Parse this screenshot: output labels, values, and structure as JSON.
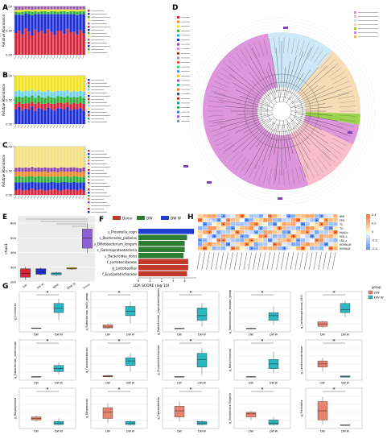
{
  "panels": {
    "A": {
      "letter": "A"
    },
    "B": {
      "letter": "B"
    },
    "C": {
      "letter": "C"
    },
    "D": {
      "letter": "D"
    },
    "E": {
      "letter": "E"
    },
    "F": {
      "letter": "F"
    },
    "G": {
      "letter": "G"
    },
    "H": {
      "letter": "H"
    }
  },
  "colors": {
    "donor": "#c0392b",
    "dw": "#2e7d32",
    "dww": "#1f3fd1",
    "phylum_bacteroidetes": "#d98ad8",
    "phylum_proteobacteria": "#f7b7c6",
    "phylum_actinobacteria": "#c8e6f5",
    "phylum_firmicutes": "#f6d8b0",
    "g_dw": "#e8836f",
    "g_dww": "#2bb6c2"
  },
  "chart_data": [
    {
      "panel": "A",
      "type": "bar",
      "stacked": true,
      "ylabel": "Relative Abundance",
      "n_samples": 22,
      "series": [
        {
          "color": "#d6243a",
          "values": [
            0.45,
            0.5,
            0.42,
            0.55,
            0.48,
            0.4,
            0.52,
            0.46,
            0.5,
            0.44,
            0.53,
            0.47,
            0.41,
            0.5,
            0.49,
            0.43,
            0.54,
            0.46,
            0.48,
            0.42,
            0.51,
            0.45
          ]
        },
        {
          "color": "#1c2fd6",
          "values": [
            0.38,
            0.33,
            0.4,
            0.3,
            0.36,
            0.42,
            0.32,
            0.38,
            0.34,
            0.4,
            0.31,
            0.37,
            0.43,
            0.34,
            0.35,
            0.41,
            0.3,
            0.38,
            0.36,
            0.4,
            0.33,
            0.39
          ]
        },
        {
          "color": "#30b03a",
          "values": [
            0.06,
            0.05,
            0.07,
            0.05,
            0.06,
            0.07,
            0.06,
            0.05,
            0.06,
            0.06,
            0.05,
            0.06,
            0.06,
            0.05,
            0.06,
            0.06,
            0.05,
            0.06,
            0.06,
            0.07,
            0.06,
            0.06
          ]
        },
        {
          "color": "#f2e21c",
          "values": [
            0.04,
            0.05,
            0.04,
            0.04,
            0.04,
            0.04,
            0.04,
            0.05,
            0.04,
            0.04,
            0.05,
            0.04,
            0.04,
            0.05,
            0.04,
            0.04,
            0.05,
            0.04,
            0.04,
            0.04,
            0.04,
            0.04
          ]
        },
        {
          "color": "#9b59b6",
          "values": [
            0.07,
            0.07,
            0.07,
            0.06,
            0.06,
            0.07,
            0.06,
            0.06,
            0.06,
            0.06,
            0.06,
            0.06,
            0.06,
            0.06,
            0.06,
            0.06,
            0.06,
            0.06,
            0.06,
            0.07,
            0.06,
            0.06
          ]
        }
      ]
    },
    {
      "panel": "B",
      "type": "bar",
      "stacked": true,
      "ylabel": "Relative Abundance",
      "n_samples": 22,
      "series": [
        {
          "color": "#1c2fd6",
          "values": [
            0.3,
            0.35,
            0.28,
            0.32,
            0.3,
            0.36,
            0.27,
            0.33,
            0.31,
            0.29,
            0.34,
            0.3,
            0.28,
            0.33,
            0.32,
            0.3,
            0.35,
            0.29,
            0.31,
            0.3,
            0.33,
            0.28
          ]
        },
        {
          "color": "#d6243a",
          "values": [
            0.12,
            0.1,
            0.14,
            0.11,
            0.13,
            0.1,
            0.15,
            0.12,
            0.11,
            0.13,
            0.1,
            0.12,
            0.14,
            0.11,
            0.12,
            0.13,
            0.1,
            0.12,
            0.13,
            0.12,
            0.11,
            0.14
          ]
        },
        {
          "color": "#30b03a",
          "values": [
            0.14,
            0.12,
            0.13,
            0.15,
            0.12,
            0.13,
            0.12,
            0.14,
            0.13,
            0.12,
            0.14,
            0.13,
            0.12,
            0.14,
            0.13,
            0.12,
            0.13,
            0.14,
            0.12,
            0.13,
            0.14,
            0.12
          ]
        },
        {
          "color": "#6fd2f0",
          "values": [
            0.12,
            0.13,
            0.12,
            0.11,
            0.13,
            0.12,
            0.13,
            0.11,
            0.12,
            0.13,
            0.12,
            0.12,
            0.13,
            0.11,
            0.12,
            0.13,
            0.12,
            0.11,
            0.13,
            0.12,
            0.11,
            0.13
          ]
        },
        {
          "color": "#f2e21c",
          "values": [
            0.32,
            0.3,
            0.33,
            0.31,
            0.32,
            0.29,
            0.33,
            0.3,
            0.33,
            0.33,
            0.3,
            0.33,
            0.33,
            0.31,
            0.31,
            0.32,
            0.3,
            0.34,
            0.31,
            0.33,
            0.31,
            0.33
          ]
        }
      ]
    },
    {
      "panel": "C",
      "type": "bar",
      "stacked": true,
      "ylabel": "Relative Abundance",
      "n_samples": 22,
      "series": [
        {
          "color": "#d6243a",
          "values": [
            0.1,
            0.12,
            0.09,
            0.11,
            0.1,
            0.13,
            0.1,
            0.11,
            0.12,
            0.09,
            0.1,
            0.11,
            0.12,
            0.1,
            0.09,
            0.11,
            0.12,
            0.1,
            0.11,
            0.1,
            0.12,
            0.09
          ]
        },
        {
          "color": "#1c2fd6",
          "values": [
            0.16,
            0.14,
            0.17,
            0.15,
            0.16,
            0.14,
            0.16,
            0.15,
            0.14,
            0.17,
            0.15,
            0.16,
            0.14,
            0.15,
            0.17,
            0.16,
            0.14,
            0.15,
            0.16,
            0.15,
            0.14,
            0.17
          ]
        },
        {
          "color": "#30b03a",
          "values": [
            0.12,
            0.13,
            0.11,
            0.12,
            0.13,
            0.12,
            0.11,
            0.13,
            0.12,
            0.12,
            0.13,
            0.11,
            0.12,
            0.13,
            0.12,
            0.11,
            0.13,
            0.12,
            0.12,
            0.13,
            0.11,
            0.12
          ]
        },
        {
          "color": "#f08a24",
          "values": [
            0.1,
            0.09,
            0.11,
            0.1,
            0.09,
            0.1,
            0.11,
            0.09,
            0.1,
            0.11,
            0.09,
            0.1,
            0.1,
            0.09,
            0.11,
            0.1,
            0.09,
            0.11,
            0.1,
            0.09,
            0.1,
            0.11
          ]
        },
        {
          "color": "#8e44ad",
          "values": [
            0.08,
            0.09,
            0.08,
            0.09,
            0.08,
            0.09,
            0.08,
            0.09,
            0.08,
            0.08,
            0.09,
            0.08,
            0.09,
            0.08,
            0.08,
            0.09,
            0.08,
            0.09,
            0.08,
            0.09,
            0.08,
            0.08
          ]
        },
        {
          "color": "#f4e07a",
          "values": [
            0.44,
            0.43,
            0.44,
            0.43,
            0.44,
            0.42,
            0.44,
            0.43,
            0.44,
            0.43,
            0.44,
            0.44,
            0.43,
            0.45,
            0.43,
            0.43,
            0.44,
            0.43,
            0.43,
            0.44,
            0.45,
            0.43
          ]
        }
      ]
    },
    {
      "panel": "E",
      "type": "box",
      "ylabel": "chao1",
      "categories": [
        "DW",
        "DW W",
        "NDW",
        "NDW W",
        "Donor"
      ],
      "colors": [
        "#d6243a",
        "#1c2fd6",
        "#1fb6c9",
        "#e8c21a",
        "#8e5fd6"
      ],
      "ylim": [
        200,
        650
      ],
      "yticks": [
        200,
        300,
        400,
        500,
        600
      ],
      "boxes": [
        {
          "min": 215,
          "q1": 232,
          "median": 258,
          "q3": 290,
          "max": 305
        },
        {
          "min": 245,
          "q1": 252,
          "median": 268,
          "q3": 290,
          "max": 300
        },
        {
          "min": 240,
          "q1": 248,
          "median": 256,
          "q3": 262,
          "max": 270
        },
        {
          "min": 282,
          "q1": 288,
          "median": 292,
          "q3": 298,
          "max": 302
        },
        {
          "min": 395,
          "q1": 430,
          "median": 500,
          "q3": 560,
          "max": 600
        }
      ]
    },
    {
      "panel": "F",
      "type": "bar",
      "orientation": "horizontal",
      "xlabel": "LDA SCORE (log 10)",
      "xlim": [
        0,
        5
      ],
      "xticks": [
        0,
        1,
        2,
        3,
        4
      ],
      "legend": [
        "Donor",
        "DW",
        "DW W"
      ],
      "categories": [
        "s_Prevotella_copri",
        "s_Bacteroides_plebeius",
        "s_Bifidobacterium_longum",
        "c_Gammaproteobacteria",
        "s_Bacteroides_dorei",
        "f_Lactobacillaceae",
        "g_Lactobacillus",
        "f_Erysipelotrichaceae"
      ],
      "values": [
        4.8,
        4.2,
        4.0,
        4.0,
        3.9,
        4.3,
        4.3,
        4.2
      ],
      "groups": [
        "DW W",
        "DW",
        "DW",
        "DW",
        "DW",
        "Donor",
        "Donor",
        "Donor"
      ]
    },
    {
      "panel": "H",
      "type": "heatmap",
      "rows": [
        "BMI",
        "FPG",
        "TC",
        "TG",
        "HbA1c",
        "HDL-c",
        "LDL-c",
        "HOMA-IR",
        "HOMA-β"
      ],
      "n_cols": 30,
      "scale": [
        -0.4,
        0.4
      ],
      "scale_ticks": [
        "0.4",
        "0.2",
        "0",
        "-0.2",
        "-0.4"
      ]
    },
    {
      "panel": "G",
      "type": "box",
      "legend_title": "group",
      "legend": [
        "DW",
        "DW W"
      ],
      "categories": [
        "DW",
        "DW W"
      ],
      "significance": "*",
      "subplots": [
        {
          "ylabel": "g_Collinsella",
          "boxes": [
            {
              "min": 0.02,
              "q1": 0.03,
              "median": 0.04,
              "q3": 0.05,
              "max": 0.06
            },
            {
              "min": 0.3,
              "q1": 0.55,
              "median": 0.7,
              "q3": 0.85,
              "max": 1.0
            }
          ]
        },
        {
          "ylabel": "g_Eubacterium_hallii_group",
          "boxes": [
            {
              "min": 0.02,
              "q1": 0.05,
              "median": 0.08,
              "q3": 0.15,
              "max": 0.2
            },
            {
              "min": 0.2,
              "q1": 0.45,
              "median": 0.6,
              "q3": 0.75,
              "max": 0.9
            }
          ]
        },
        {
          "ylabel": "g_Eubacterium_coprostanoligenes",
          "boxes": [
            {
              "min": 0.01,
              "q1": 0.02,
              "median": 0.03,
              "q3": 0.04,
              "max": 0.05
            },
            {
              "min": 0.1,
              "q1": 0.3,
              "median": 0.45,
              "q3": 0.7,
              "max": 0.85
            }
          ]
        },
        {
          "ylabel": "g_Ruminococcus_torques_group",
          "boxes": [
            {
              "min": 0.01,
              "q1": 0.02,
              "median": 0.03,
              "q3": 0.04,
              "max": 0.05
            },
            {
              "min": 0.15,
              "q1": 0.3,
              "median": 0.45,
              "q3": 0.55,
              "max": 0.75
            }
          ]
        },
        {
          "ylabel": "g_Lachnospiraceae_UCG",
          "boxes": [
            {
              "min": 0.05,
              "q1": 0.1,
              "median": 0.18,
              "q3": 0.25,
              "max": 0.3
            },
            {
              "min": 0.4,
              "q1": 0.55,
              "median": 0.65,
              "q3": 0.85,
              "max": 0.95
            }
          ]
        },
        {
          "ylabel": "g_Eubacterium_ventriosum",
          "boxes": [
            {
              "min": 0.01,
              "q1": 0.02,
              "median": 0.03,
              "q3": 0.04,
              "max": 0.05
            },
            {
              "min": 0.1,
              "q1": 0.2,
              "median": 0.3,
              "q3": 0.4,
              "max": 0.5
            }
          ]
        },
        {
          "ylabel": "g_Fusicatenibacter",
          "boxes": [
            {
              "min": 0.02,
              "q1": 0.03,
              "median": 0.05,
              "q3": 0.07,
              "max": 0.1
            },
            {
              "min": 0.2,
              "q1": 0.4,
              "median": 0.55,
              "q3": 0.65,
              "max": 0.8
            }
          ]
        },
        {
          "ylabel": "g_Erysipelotrichaceae",
          "boxes": [
            {
              "min": 0.01,
              "q1": 0.02,
              "median": 0.03,
              "q3": 0.04,
              "max": 0.05
            },
            {
              "min": 0.1,
              "q1": 0.35,
              "median": 0.6,
              "q3": 0.8,
              "max": 0.95
            }
          ]
        },
        {
          "ylabel": "g_Butyricicoccus",
          "boxes": [
            {
              "min": 0.01,
              "q1": 0.02,
              "median": 0.03,
              "q3": 0.04,
              "max": 0.05
            },
            {
              "min": 0.15,
              "q1": 0.3,
              "median": 0.45,
              "q3": 0.6,
              "max": 0.85
            }
          ]
        },
        {
          "ylabel": "g_Lachnoclostridium",
          "boxes": [
            {
              "min": 0.2,
              "q1": 0.35,
              "median": 0.45,
              "q3": 0.55,
              "max": 0.65
            },
            {
              "min": 0.01,
              "q1": 0.02,
              "median": 0.04,
              "q3": 0.06,
              "max": 0.08
            }
          ]
        },
        {
          "ylabel": "g_Megasphaera",
          "boxes": [
            {
              "min": 0.15,
              "q1": 0.2,
              "median": 0.25,
              "q3": 0.3,
              "max": 0.35
            },
            {
              "min": 0.02,
              "q1": 0.05,
              "median": 0.1,
              "q3": 0.15,
              "max": 0.25
            }
          ]
        },
        {
          "ylabel": "g_Megamonas",
          "boxes": [
            {
              "min": 0.1,
              "q1": 0.25,
              "median": 0.45,
              "q3": 0.6,
              "max": 0.75
            },
            {
              "min": 0.02,
              "q1": 0.05,
              "median": 0.1,
              "q3": 0.15,
              "max": 0.2
            }
          ]
        },
        {
          "ylabel": "g_Parasutterella",
          "boxes": [
            {
              "min": 0.15,
              "q1": 0.3,
              "median": 0.5,
              "q3": 0.65,
              "max": 0.8
            },
            {
              "min": 0.02,
              "q1": 0.05,
              "median": 0.1,
              "q3": 0.15,
              "max": 0.2
            }
          ]
        },
        {
          "ylabel": "g_Escherichia-Shigella",
          "boxes": [
            {
              "min": 0.2,
              "q1": 0.3,
              "median": 0.4,
              "q3": 0.45,
              "max": 0.5
            },
            {
              "min": 0.02,
              "q1": 0.05,
              "median": 0.1,
              "q3": 0.2,
              "max": 0.3
            }
          ]
        },
        {
          "ylabel": "g_Prevotella",
          "boxes": [
            {
              "min": 0.05,
              "q1": 0.2,
              "median": 0.5,
              "q3": 0.8,
              "max": 0.95
            },
            {
              "min": 0.01,
              "q1": 0.02,
              "median": 0.03,
              "q3": 0.04,
              "max": 0.05
            }
          ]
        }
      ]
    }
  ]
}
